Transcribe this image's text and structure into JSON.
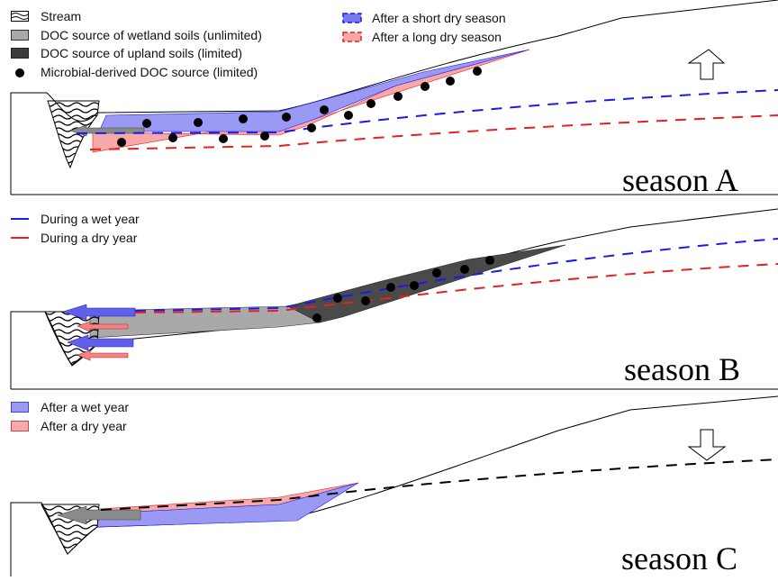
{
  "panels": [
    {
      "id": "a",
      "season_label": "season A",
      "legend_left": [
        {
          "label": "Stream",
          "swatch": "stream-icon"
        },
        {
          "label": "DOC source of wetland soils (unlimited)",
          "swatch": "wetland-soil-swatch"
        },
        {
          "label": "DOC source of upland soils (limited)",
          "swatch": "upland-soil-swatch"
        },
        {
          "label": "Microbial-derived DOC source (limited)",
          "swatch": "microbial-dot"
        }
      ],
      "legend_right": [
        {
          "label": "After a short dry season",
          "swatch": "blue-dashed-swatch"
        },
        {
          "label": "After a long dry season",
          "swatch": "red-dashed-swatch"
        }
      ],
      "arrow_direction": "up"
    },
    {
      "id": "b",
      "season_label": "season B",
      "legend_left": [
        {
          "label": "During a wet year",
          "swatch": "blue-dash-line"
        },
        {
          "label": "During a dry year",
          "swatch": "red-dash-line"
        }
      ]
    },
    {
      "id": "c",
      "season_label": "season C",
      "legend_left": [
        {
          "label": "After a wet year",
          "swatch": "blue-fill-swatch"
        },
        {
          "label": "After a dry year",
          "swatch": "red-fill-swatch"
        }
      ],
      "arrow_direction": "down"
    }
  ],
  "colors": {
    "blue_line": "#1a1aee",
    "red_line": "#e82020",
    "blue_fill": "#9a9af4",
    "red_fill": "#f7a8a8",
    "wetland_gray": "#a9a9a9",
    "upland_dark": "#4a4a4a",
    "arrow_blue": "#6060ec",
    "arrow_red": "#f08585",
    "arrow_gray": "#8a8a8a"
  }
}
